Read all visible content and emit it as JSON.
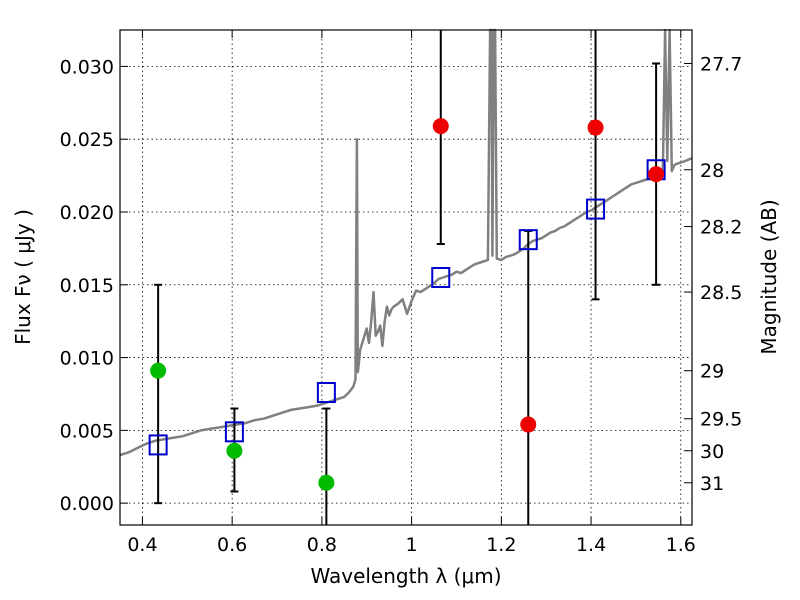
{
  "chart_data": {
    "type": "scatter",
    "xlabel": "Wavelength  λ (μm)",
    "ylabel": "Flux  Fν  ( μJy )",
    "ylabel_right": "Magnitude (AB)",
    "xlim": [
      0.35,
      1.625
    ],
    "ylim": [
      -0.0015,
      0.0325
    ],
    "grid": true,
    "x_ticks": [
      0.4,
      0.6,
      0.8,
      1.0,
      1.2,
      1.4,
      1.6
    ],
    "x_tick_labels": [
      "0.4",
      "0.6",
      "0.8",
      "1",
      "1.2",
      "1.4",
      "1.6"
    ],
    "y_ticks": [
      0.0,
      0.005,
      0.01,
      0.015,
      0.02,
      0.025,
      0.03
    ],
    "y_tick_labels": [
      "0.000",
      "0.005",
      "0.010",
      "0.015",
      "0.020",
      "0.025",
      "0.030"
    ],
    "right_ticks": [
      {
        "label": "27.7",
        "flux": 0.0302
      },
      {
        "label": "28",
        "flux": 0.0229
      },
      {
        "label": "28.2",
        "flux": 0.019
      },
      {
        "label": "28.5",
        "flux": 0.0145
      },
      {
        "label": "29",
        "flux": 0.0091
      },
      {
        "label": "29.5",
        "flux": 0.0058
      },
      {
        "label": "30",
        "flux": 0.0036
      },
      {
        "label": "31",
        "flux": 0.0014
      }
    ],
    "series": [
      {
        "kind": "spectrum",
        "color": "#808080",
        "x": [
          0.35,
          0.37,
          0.39,
          0.41,
          0.43,
          0.45,
          0.47,
          0.49,
          0.51,
          0.53,
          0.55,
          0.57,
          0.59,
          0.61,
          0.63,
          0.65,
          0.67,
          0.69,
          0.71,
          0.73,
          0.75,
          0.77,
          0.79,
          0.81,
          0.83,
          0.85,
          0.86,
          0.87,
          0.875,
          0.878,
          0.88,
          0.882,
          0.885,
          0.89,
          0.895,
          0.9,
          0.905,
          0.91,
          0.915,
          0.92,
          0.925,
          0.93,
          0.935,
          0.94,
          0.945,
          0.95,
          0.955,
          0.96,
          0.97,
          0.98,
          0.99,
          1.0,
          1.01,
          1.02,
          1.03,
          1.04,
          1.05,
          1.06,
          1.07,
          1.08,
          1.09,
          1.1,
          1.11,
          1.12,
          1.13,
          1.14,
          1.15,
          1.16,
          1.17,
          1.175,
          1.178,
          1.18,
          1.183,
          1.186,
          1.19,
          1.2,
          1.21,
          1.22,
          1.23,
          1.24,
          1.25,
          1.26,
          1.27,
          1.28,
          1.29,
          1.3,
          1.31,
          1.32,
          1.33,
          1.34,
          1.35,
          1.36,
          1.37,
          1.38,
          1.39,
          1.4,
          1.41,
          1.42,
          1.43,
          1.44,
          1.45,
          1.46,
          1.47,
          1.48,
          1.49,
          1.5,
          1.51,
          1.52,
          1.53,
          1.54,
          1.55,
          1.56,
          1.565,
          1.57,
          1.575,
          1.58,
          1.585,
          1.59,
          1.6,
          1.61,
          1.625
        ],
        "y": [
          0.0033,
          0.0035,
          0.0038,
          0.0041,
          0.0043,
          0.0044,
          0.0045,
          0.0046,
          0.0048,
          0.005,
          0.0051,
          0.0052,
          0.0053,
          0.0054,
          0.0055,
          0.0057,
          0.0058,
          0.006,
          0.0062,
          0.0064,
          0.0065,
          0.0066,
          0.0067,
          0.0069,
          0.0071,
          0.0073,
          0.0076,
          0.008,
          0.0085,
          0.025,
          0.009,
          0.0095,
          0.0105,
          0.011,
          0.0115,
          0.012,
          0.011,
          0.0125,
          0.0145,
          0.0115,
          0.0118,
          0.0122,
          0.0108,
          0.0125,
          0.0135,
          0.0129,
          0.0133,
          0.0135,
          0.0137,
          0.014,
          0.013,
          0.0139,
          0.0146,
          0.0145,
          0.0147,
          0.0149,
          0.0151,
          0.0154,
          0.0155,
          0.0156,
          0.0157,
          0.0159,
          0.0158,
          0.016,
          0.0162,
          0.0164,
          0.0165,
          0.0166,
          0.0167,
          0.0325,
          0.0325,
          0.017,
          0.0325,
          0.0325,
          0.0168,
          0.0167,
          0.0169,
          0.017,
          0.0171,
          0.0173,
          0.0175,
          0.0178,
          0.018,
          0.0181,
          0.0182,
          0.0184,
          0.0186,
          0.0187,
          0.0189,
          0.019,
          0.0192,
          0.0194,
          0.0196,
          0.0198,
          0.02,
          0.0201,
          0.0203,
          0.0205,
          0.0207,
          0.0209,
          0.0211,
          0.0213,
          0.0215,
          0.0217,
          0.0219,
          0.022,
          0.0221,
          0.0222,
          0.0223,
          0.0224,
          0.0225,
          0.0226,
          0.0325,
          0.0235,
          0.0325,
          0.0228,
          0.0232,
          0.0233,
          0.0234,
          0.0235,
          0.0237
        ]
      },
      {
        "kind": "model-boxes",
        "marker": "square",
        "color": "#0000cc",
        "x": [
          0.435,
          0.605,
          0.81,
          1.065,
          1.26,
          1.41,
          1.545
        ],
        "y": [
          0.004,
          0.0049,
          0.0076,
          0.0155,
          0.0181,
          0.0202,
          0.0229
        ]
      },
      {
        "kind": "observed-green",
        "marker": "circle",
        "color": "#00bb00",
        "x": [
          0.435,
          0.605,
          0.81
        ],
        "y": [
          0.0091,
          0.0036,
          0.0014
        ],
        "err_low": [
          0.0,
          0.0008,
          -0.0015
        ],
        "err_high": [
          0.015,
          0.0065,
          0.0065
        ]
      },
      {
        "kind": "observed-red",
        "marker": "circle",
        "color": "#ee0000",
        "x": [
          1.065,
          1.26,
          1.41,
          1.545
        ],
        "y": [
          0.0259,
          0.0054,
          0.0258,
          0.0226
        ],
        "err_low": [
          0.0178,
          -0.0015,
          0.014,
          0.015
        ],
        "err_high": [
          0.0325,
          0.0187,
          0.0325,
          0.0302
        ]
      }
    ]
  }
}
